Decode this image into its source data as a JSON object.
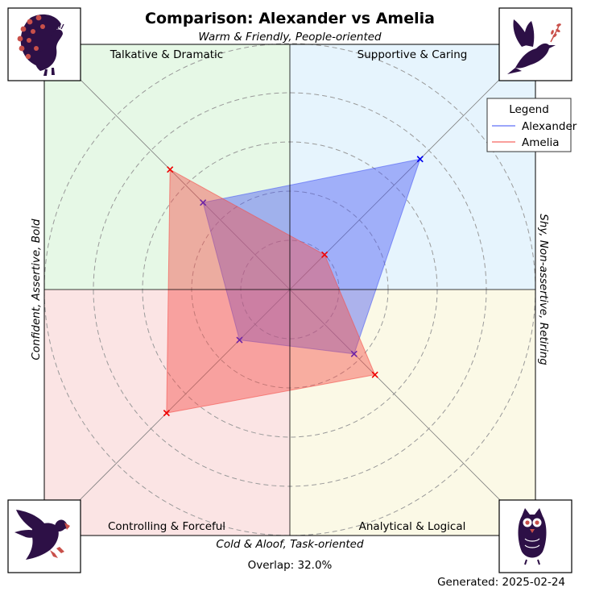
{
  "title": "Comparison: Alexander vs Amelia",
  "axes": {
    "top": "Warm & Friendly, People-oriented",
    "bottom": "Cold & Aloof, Task-oriented",
    "left": "Confident, Assertive, Bold",
    "right": "Shy, Non-assertive, Retiring"
  },
  "quadrants": {
    "top_left": "Talkative & Dramatic",
    "top_right": "Supportive & Caring",
    "bottom_left": "Controlling & Forceful",
    "bottom_right": "Analytical & Logical"
  },
  "colors": {
    "top_left": "#e6f8e6",
    "top_right": "#e6f4fd",
    "bottom_left": "#fbe4e4",
    "bottom_right": "#fbf9e6",
    "alexander": "#4b5cf5",
    "amelia": "#f5504b",
    "alexander_marker": "#0000ee",
    "amelia_marker": "#ee0000",
    "icon": "#2d1046",
    "icon_accent": "#c9504a"
  },
  "icons": {
    "top_left": "peacock-icon",
    "top_right": "dove-icon",
    "bottom_left": "eagle-icon",
    "bottom_right": "owl-icon"
  },
  "legend": {
    "title": "Legend",
    "placement": "top-right"
  },
  "overlap_text": "Overlap: 32.0%",
  "generated_text": "Generated: 2025-02-24",
  "chart_data": {
    "type": "radar",
    "axes_order": [
      "Supportive & Caring",
      "Talkative & Dramatic",
      "Controlling & Forceful",
      "Analytical & Logical"
    ],
    "range": [
      0,
      100
    ],
    "grid": true,
    "series": [
      {
        "name": "Alexander",
        "values": [
          75,
          50,
          29,
          37
        ]
      },
      {
        "name": "Amelia",
        "values": [
          20,
          69,
          71,
          49
        ]
      }
    ]
  }
}
